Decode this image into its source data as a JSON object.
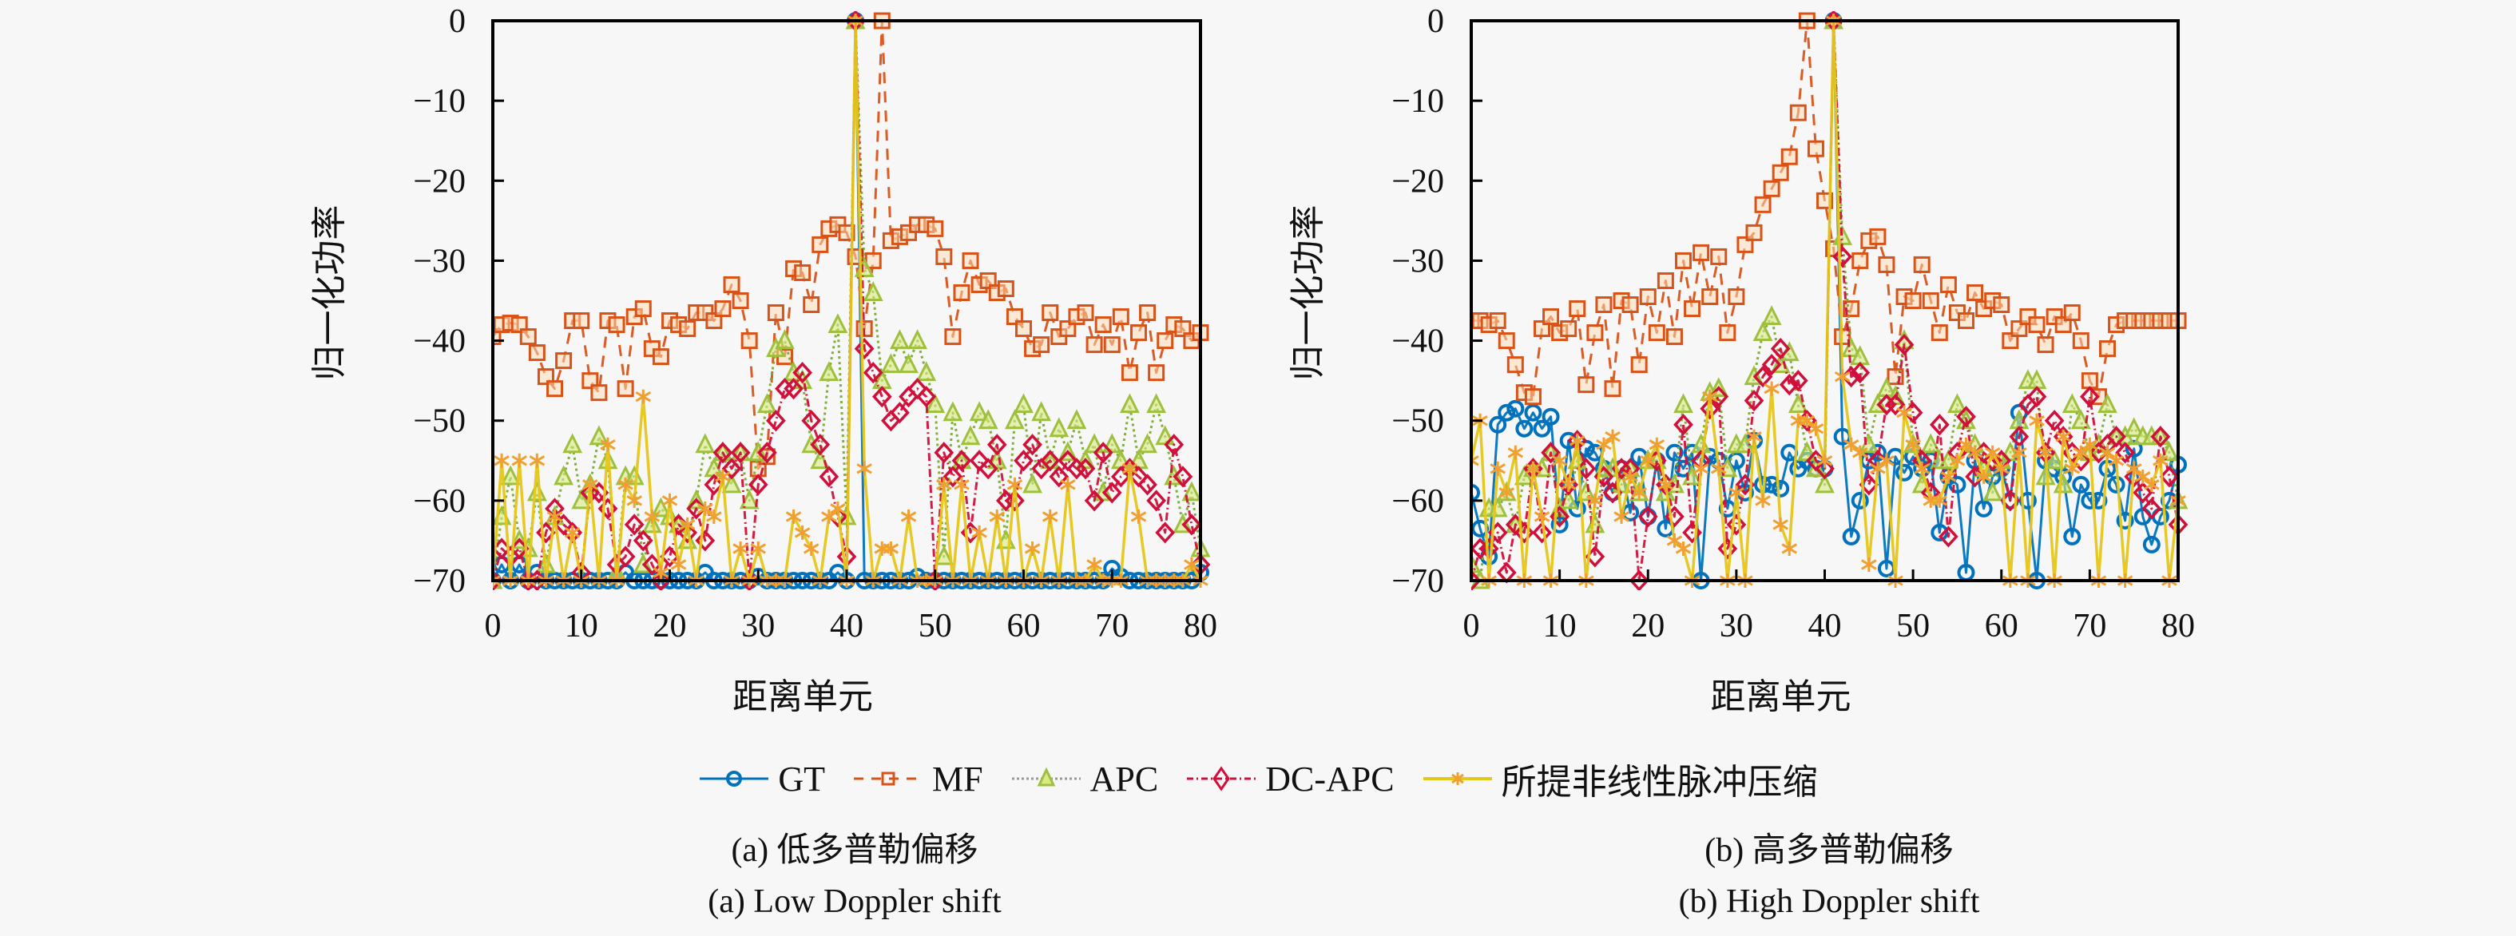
{
  "chart_data": [
    {
      "type": "line",
      "id": "a",
      "title": "",
      "xlabel": "距离单元",
      "ylabel": "归一化功率",
      "xlim": [
        0,
        80
      ],
      "ylim": [
        -70,
        0
      ],
      "xticks": [
        0,
        10,
        20,
        30,
        40,
        50,
        60,
        70,
        80
      ],
      "yticks": [
        0,
        -10,
        -20,
        -30,
        -40,
        -50,
        -60,
        -70
      ],
      "grid": false,
      "legend_position": "bottom-center",
      "caption_zh": "(a) 低多普勒偏移",
      "caption_en": "(a) Low Doppler shift",
      "x": [
        0,
        1,
        2,
        3,
        4,
        5,
        6,
        7,
        8,
        9,
        10,
        11,
        12,
        13,
        14,
        15,
        16,
        17,
        18,
        19,
        20,
        21,
        22,
        23,
        24,
        25,
        26,
        27,
        28,
        29,
        30,
        31,
        32,
        33,
        34,
        35,
        36,
        37,
        38,
        39,
        40,
        41,
        42,
        43,
        44,
        45,
        46,
        47,
        48,
        49,
        50,
        51,
        52,
        53,
        54,
        55,
        56,
        57,
        58,
        59,
        60,
        61,
        62,
        63,
        64,
        65,
        66,
        67,
        68,
        69,
        70,
        71,
        72,
        73,
        74,
        75,
        76,
        77,
        78,
        79,
        80
      ],
      "series": [
        {
          "name": "GT",
          "values": [
            -70,
            -68,
            -70,
            -68,
            -70,
            -69,
            -70,
            -70,
            -70,
            -70,
            -70,
            -70,
            -70,
            -70,
            -70,
            -69,
            -70,
            -70,
            -70,
            -70,
            -70,
            -70,
            -70,
            -70,
            -69,
            -70,
            -70,
            -70,
            -70,
            -70,
            -69.5,
            -70,
            -70,
            -70,
            -70,
            -70,
            -70,
            -70,
            -70,
            -69,
            -70,
            0,
            -70,
            -70,
            -70,
            -70,
            -70,
            -70,
            -69.5,
            -70,
            -70,
            -70,
            -70,
            -70,
            -70,
            -70,
            -70,
            -70,
            -70,
            -70,
            -70,
            -70,
            -70,
            -70,
            -70,
            -70,
            -70,
            -70,
            -70,
            -70,
            -68.5,
            -69.5,
            -70,
            -70,
            -70,
            -70,
            -70,
            -70,
            -70,
            -70,
            -69
          ]
        },
        {
          "name": "MF",
          "values": [
            -39.5,
            -38,
            -37.8,
            -38,
            -39.5,
            -41.5,
            -44.5,
            -46,
            -42.5,
            -37.5,
            -37.5,
            -45,
            -46.5,
            -37.5,
            -38,
            -46,
            -37,
            -36,
            -41,
            -42,
            -37.5,
            -38,
            -38.5,
            -36.5,
            -36.5,
            -37.5,
            -36,
            -33,
            -35,
            -40,
            -56,
            -54.5,
            -36.5,
            -42,
            -31,
            -31.5,
            -35.5,
            -28,
            -26,
            -25.5,
            -26.5,
            -29.5,
            -38.5,
            -30,
            0,
            -27.5,
            -27,
            -26.5,
            -25.5,
            -25.5,
            -26,
            -29.5,
            -39.5,
            -34,
            -30,
            -33,
            -32.5,
            -34,
            -33.5,
            -37,
            -38.5,
            -41,
            -40.5,
            -36.5,
            -39.5,
            -38.5,
            -37,
            -36.5,
            -40.5,
            -38,
            -40.5,
            -37,
            -44,
            -39,
            -36.5,
            -44,
            -40,
            -38,
            -38.5,
            -40,
            -39
          ]
        },
        {
          "name": "APC",
          "values": [
            -70,
            -62,
            -57,
            -65,
            -66,
            -59,
            -68,
            -62,
            -57,
            -53,
            -60,
            -58,
            -52,
            -55,
            -69,
            -57,
            -57,
            -68,
            -63,
            -61,
            -62,
            -63,
            -65,
            -60,
            -53,
            -56,
            -54,
            -58,
            -54,
            -60,
            -54,
            -48,
            -41,
            -40,
            -44,
            -45,
            -53,
            -55,
            -44,
            -38,
            -62,
            0,
            -31,
            -34,
            -45,
            -43,
            -40,
            -43,
            -40,
            -44,
            -48,
            -67,
            -49,
            -55,
            -52,
            -49,
            -50,
            -55,
            -65,
            -50,
            -48,
            -58,
            -49,
            -55,
            -51,
            -54,
            -50,
            -55,
            -53,
            -59,
            -53,
            -55,
            -48,
            -55,
            -53,
            -48,
            -52,
            -57,
            -63,
            -59,
            -66
          ]
        },
        {
          "name": "DC-APC",
          "values": [
            -70,
            -66,
            -67,
            -66,
            -70,
            -70,
            -64,
            -61,
            -63,
            -64,
            -69,
            -59,
            -59,
            -61,
            -68,
            -67,
            -63,
            -65,
            -68,
            -70,
            -67,
            -63,
            -64,
            -61,
            -65,
            -58,
            -54,
            -56,
            -54,
            -70,
            -58,
            -54,
            -50,
            -46,
            -46,
            -44,
            -50,
            -53,
            -57,
            -62,
            -67,
            0,
            -41,
            -44,
            -47,
            -50,
            -49,
            -47,
            -46,
            -47,
            -70,
            -54,
            -57,
            -55,
            -64,
            -55,
            -56,
            -53,
            -60,
            -60,
            -55,
            -53,
            -56,
            -55,
            -57,
            -55,
            -56,
            -56,
            -60,
            -54,
            -59,
            -57,
            -56,
            -57,
            -58,
            -60,
            -64,
            -53,
            -57,
            -63,
            -68
          ]
        },
        {
          "name": "所提非线性脉冲压缩",
          "values": [
            -70,
            -55,
            -70,
            -55,
            -70,
            -55,
            -70,
            -62,
            -70,
            -64,
            -70,
            -58,
            -70,
            -53,
            -70,
            -58,
            -60,
            -47,
            -62,
            -69,
            -60,
            -68,
            -63,
            -70,
            -61,
            -62,
            -57,
            -70,
            -66,
            -70,
            -66,
            -70,
            -70,
            -70,
            -62,
            -64,
            -66,
            -70,
            -62,
            -61,
            -70,
            0,
            -56,
            -70,
            -66,
            -66,
            -70,
            -62,
            -70,
            -70,
            -70,
            -58,
            -70,
            -58,
            -70,
            -64,
            -70,
            -62,
            -70,
            -58,
            -70,
            -66,
            -70,
            -62,
            -70,
            -58,
            -70,
            -70,
            -68,
            -70,
            -70,
            -70,
            -56,
            -62,
            -70,
            -70,
            -70,
            -70,
            -70,
            -68,
            -70
          ]
        }
      ]
    },
    {
      "type": "line",
      "id": "b",
      "title": "",
      "xlabel": "距离单元",
      "ylabel": "归一化功率",
      "xlim": [
        0,
        80
      ],
      "ylim": [
        -70,
        0
      ],
      "xticks": [
        0,
        10,
        20,
        30,
        40,
        50,
        60,
        70,
        80
      ],
      "yticks": [
        0,
        -10,
        -20,
        -30,
        -40,
        -50,
        -60,
        -70
      ],
      "grid": false,
      "legend_position": "bottom-center",
      "caption_zh": "(b) 高多普勒偏移",
      "caption_en": "(b) High Doppler shift",
      "x": [
        0,
        1,
        2,
        3,
        4,
        5,
        6,
        7,
        8,
        9,
        10,
        11,
        12,
        13,
        14,
        15,
        16,
        17,
        18,
        19,
        20,
        21,
        22,
        23,
        24,
        25,
        26,
        27,
        28,
        29,
        30,
        31,
        32,
        33,
        34,
        35,
        36,
        37,
        38,
        39,
        40,
        41,
        42,
        43,
        44,
        45,
        46,
        47,
        48,
        49,
        50,
        51,
        52,
        53,
        54,
        55,
        56,
        57,
        58,
        59,
        60,
        61,
        62,
        63,
        64,
        65,
        66,
        67,
        68,
        69,
        70,
        71,
        72,
        73,
        74,
        75,
        76,
        77,
        78,
        79,
        80
      ],
      "series": [
        {
          "name": "GT",
          "values": [
            -59,
            -63.5,
            -67,
            -50.5,
            -49,
            -48.5,
            -51,
            -49,
            -51,
            -49.5,
            -63,
            -52.5,
            -61,
            -53.5,
            -54,
            -56,
            -59,
            -56,
            -61.5,
            -54.5,
            -62,
            -55,
            -63.5,
            -54,
            -56,
            -54,
            -70,
            -54.5,
            -55,
            -61,
            -55,
            -59,
            -52.5,
            -58,
            -58,
            -58.5,
            -54,
            -56,
            -55,
            -56,
            -56,
            0,
            -52,
            -64.5,
            -60,
            -55,
            -54,
            -68.5,
            -54.5,
            -56.5,
            -54.5,
            -56,
            -55,
            -64,
            -57,
            -58,
            -69,
            -55,
            -61,
            -57,
            -56,
            -60,
            -49,
            -60,
            -70,
            -55,
            -56,
            -57,
            -64.5,
            -58,
            -60,
            -60,
            -56,
            -58,
            -62.5,
            -53.5,
            -62,
            -65.5,
            -62,
            -60,
            -55.5
          ]
        },
        {
          "name": "MF",
          "values": [
            -37.5,
            -37.5,
            -38,
            -37.5,
            -40,
            -43,
            -46.5,
            -47,
            -38.5,
            -37,
            -39,
            -38.5,
            -36,
            -45.5,
            -39,
            -35.5,
            -46,
            -35,
            -35.5,
            -43,
            -34.5,
            -39,
            -32.5,
            -39.5,
            -30,
            -36,
            -29,
            -34.5,
            -29.5,
            -39,
            -34.5,
            -28,
            -26.5,
            -23,
            -21,
            -19,
            -17,
            -11.5,
            0,
            -16,
            -22.5,
            -28.5,
            -39.5,
            -36,
            -30,
            -27.5,
            -27,
            -30.5,
            -44.5,
            -34.5,
            -35,
            -30.5,
            -35,
            -39,
            -33,
            -36.5,
            -37.5,
            -34,
            -36,
            -35,
            -35.5,
            -40,
            -38.5,
            -37,
            -38,
            -40.5,
            -37,
            -38,
            -36.5,
            -40,
            -45,
            -47,
            -41,
            -38,
            -37.5,
            -37.5,
            -37.5,
            -37.5,
            -37.5,
            -37.5,
            -37.5
          ]
        },
        {
          "name": "APC",
          "values": [
            -68,
            -70,
            -61,
            -61,
            -59,
            -63,
            -57,
            -56,
            -56,
            -54,
            -61,
            -60,
            -55,
            -59,
            -63,
            -56,
            -56,
            -58,
            -56,
            -59,
            -55,
            -55,
            -59,
            -58,
            -48,
            -57,
            -53,
            -46.5,
            -46,
            -56,
            -53,
            -53,
            -44.5,
            -39,
            -37,
            -43,
            -41.5,
            -48,
            -54,
            -56,
            -58,
            0,
            -27,
            -41,
            -42,
            -53,
            -48,
            -46,
            -47,
            -40,
            -53,
            -58,
            -53,
            -55,
            -55,
            -48,
            -50,
            -53,
            -56,
            -59,
            -55,
            -54,
            -50,
            -45,
            -45,
            -57,
            -55,
            -58,
            -48,
            -50,
            -54,
            -53,
            -48,
            -52,
            -52,
            -51,
            -52,
            -52,
            -52,
            -54,
            -60
          ]
        },
        {
          "name": "DC-APC",
          "values": [
            -70,
            -66,
            -66,
            -64,
            -69,
            -63,
            -64,
            -56,
            -64,
            -54,
            -62,
            -58,
            -52.5,
            -56,
            -67,
            -57,
            -59,
            -56,
            -56,
            -70,
            -62,
            -55,
            -58,
            -62,
            -50.5,
            -64,
            -55,
            -48.5,
            -47,
            -66,
            -63,
            -58,
            -47.5,
            -44.5,
            -43,
            -41,
            -45.5,
            -45,
            -50,
            -55,
            -56,
            0,
            -29.5,
            -44.5,
            -44,
            -58,
            -55,
            -48,
            -48,
            -40.5,
            -49,
            -55,
            -59,
            -50.5,
            -64.5,
            -54,
            -49.5,
            -57,
            -54,
            -55,
            -55,
            -60,
            -52,
            -48,
            -47,
            -54,
            -50,
            -52,
            -54,
            -55,
            -47,
            -54,
            -53,
            -52,
            -54,
            -57,
            -59,
            -61,
            -52,
            -57,
            -63
          ]
        },
        {
          "name": "所提非线性脉冲压缩",
          "values": [
            -55,
            -50,
            -70,
            -56,
            -59,
            -54,
            -70,
            -56,
            -62,
            -70,
            -55,
            -58,
            -52.5,
            -70,
            -60,
            -53,
            -52,
            -62,
            -57,
            -59,
            -55,
            -53,
            -58,
            -65,
            -66,
            -70,
            -56,
            -47,
            -56,
            -70,
            -59,
            -70,
            -52,
            -60,
            -46,
            -63,
            -66,
            -50,
            -50,
            -51,
            -55,
            0,
            -44.5,
            -53,
            -54,
            -68,
            -56,
            -55,
            -70,
            -49,
            -53,
            -56,
            -60,
            -60,
            -57,
            -55,
            -53,
            -54,
            -57,
            -54,
            -56,
            -70,
            -54,
            -70,
            -50,
            -54,
            -70,
            -52,
            -56,
            -54,
            -53,
            -70,
            -54,
            -55,
            -70,
            -56,
            -57,
            -58,
            -55,
            -70,
            -60
          ]
        }
      ]
    }
  ],
  "series_style": [
    {
      "name": "GT",
      "color": "#0072bd",
      "line": "solid",
      "marker": "circle",
      "marker_color": "#0072bd"
    },
    {
      "name": "MF",
      "color": "#d95319",
      "line": "dashed",
      "marker": "square",
      "marker_color": "#d95319"
    },
    {
      "name": "APC",
      "color": "#77ac30",
      "line": "dotted",
      "marker": "triangle",
      "marker_color": "#9fbf3f"
    },
    {
      "name": "DC-APC",
      "color": "#d0103a",
      "line": "dashdot",
      "marker": "diamond",
      "marker_color": "#d0103a"
    },
    {
      "name": "所提非线性脉冲压缩",
      "color": "#e6c619",
      "line": "solid",
      "marker": "star",
      "marker_color": "#f0a030"
    }
  ],
  "legend": {
    "items": [
      "GT",
      "MF",
      "APC",
      "DC-APC",
      "所提非线性脉冲压缩"
    ]
  },
  "ytick_labels": [
    "0",
    "−10",
    "−20",
    "−30",
    "−40",
    "−50",
    "−60",
    "−70"
  ],
  "xtick_labels": [
    "0",
    "10",
    "20",
    "30",
    "40",
    "50",
    "60",
    "70",
    "80"
  ]
}
